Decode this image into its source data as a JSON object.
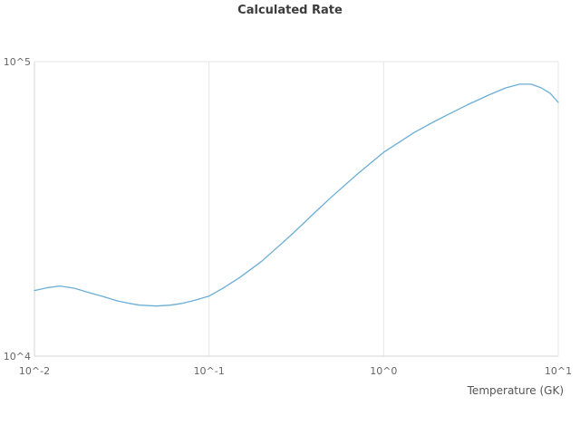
{
  "chart": {
    "title": "Calculated Rate",
    "x_axis_title": "Temperature (GK)"
  },
  "chart_data": {
    "type": "line",
    "title": "Calculated Rate",
    "xlabel": "Temperature (GK)",
    "ylabel": "",
    "x_scale": "log",
    "y_scale": "log",
    "xlim": [
      0.01,
      10
    ],
    "ylim": [
      10000,
      100000
    ],
    "grid": true,
    "legend": "none",
    "line_color": "#6baed6",
    "grid_color": "#e6e6e6",
    "axis_line_color": "#d6d6d6",
    "tick_label_color": "#666666",
    "x_ticks": [
      {
        "value": 0.01,
        "label": "10^-2"
      },
      {
        "value": 0.1,
        "label": "10^-1"
      },
      {
        "value": 1,
        "label": "10^0"
      },
      {
        "value": 10,
        "label": "10^1"
      }
    ],
    "y_ticks": [
      {
        "value": 10000,
        "label": "10^4"
      },
      {
        "value": 100000,
        "label": "10^5"
      }
    ],
    "series": [
      {
        "name": "calculated-rate",
        "x": [
          0.01,
          0.012,
          0.014,
          0.017,
          0.02,
          0.025,
          0.03,
          0.035,
          0.04,
          0.05,
          0.06,
          0.07,
          0.08,
          0.1,
          0.12,
          0.15,
          0.2,
          0.25,
          0.3,
          0.4,
          0.5,
          0.7,
          1.0,
          1.5,
          2.0,
          3.0,
          4.0,
          5.0,
          6.0,
          7.0,
          8.0,
          9.0,
          10.0
        ],
        "y": [
          16700,
          17100,
          17300,
          17000,
          16500,
          15900,
          15400,
          15100,
          14900,
          14800,
          14900,
          15100,
          15400,
          16000,
          17000,
          18500,
          21000,
          23600,
          26000,
          30600,
          34600,
          41300,
          49200,
          57500,
          63100,
          71200,
          77000,
          81400,
          83800,
          83800,
          81400,
          78000,
          72700
        ]
      }
    ]
  }
}
